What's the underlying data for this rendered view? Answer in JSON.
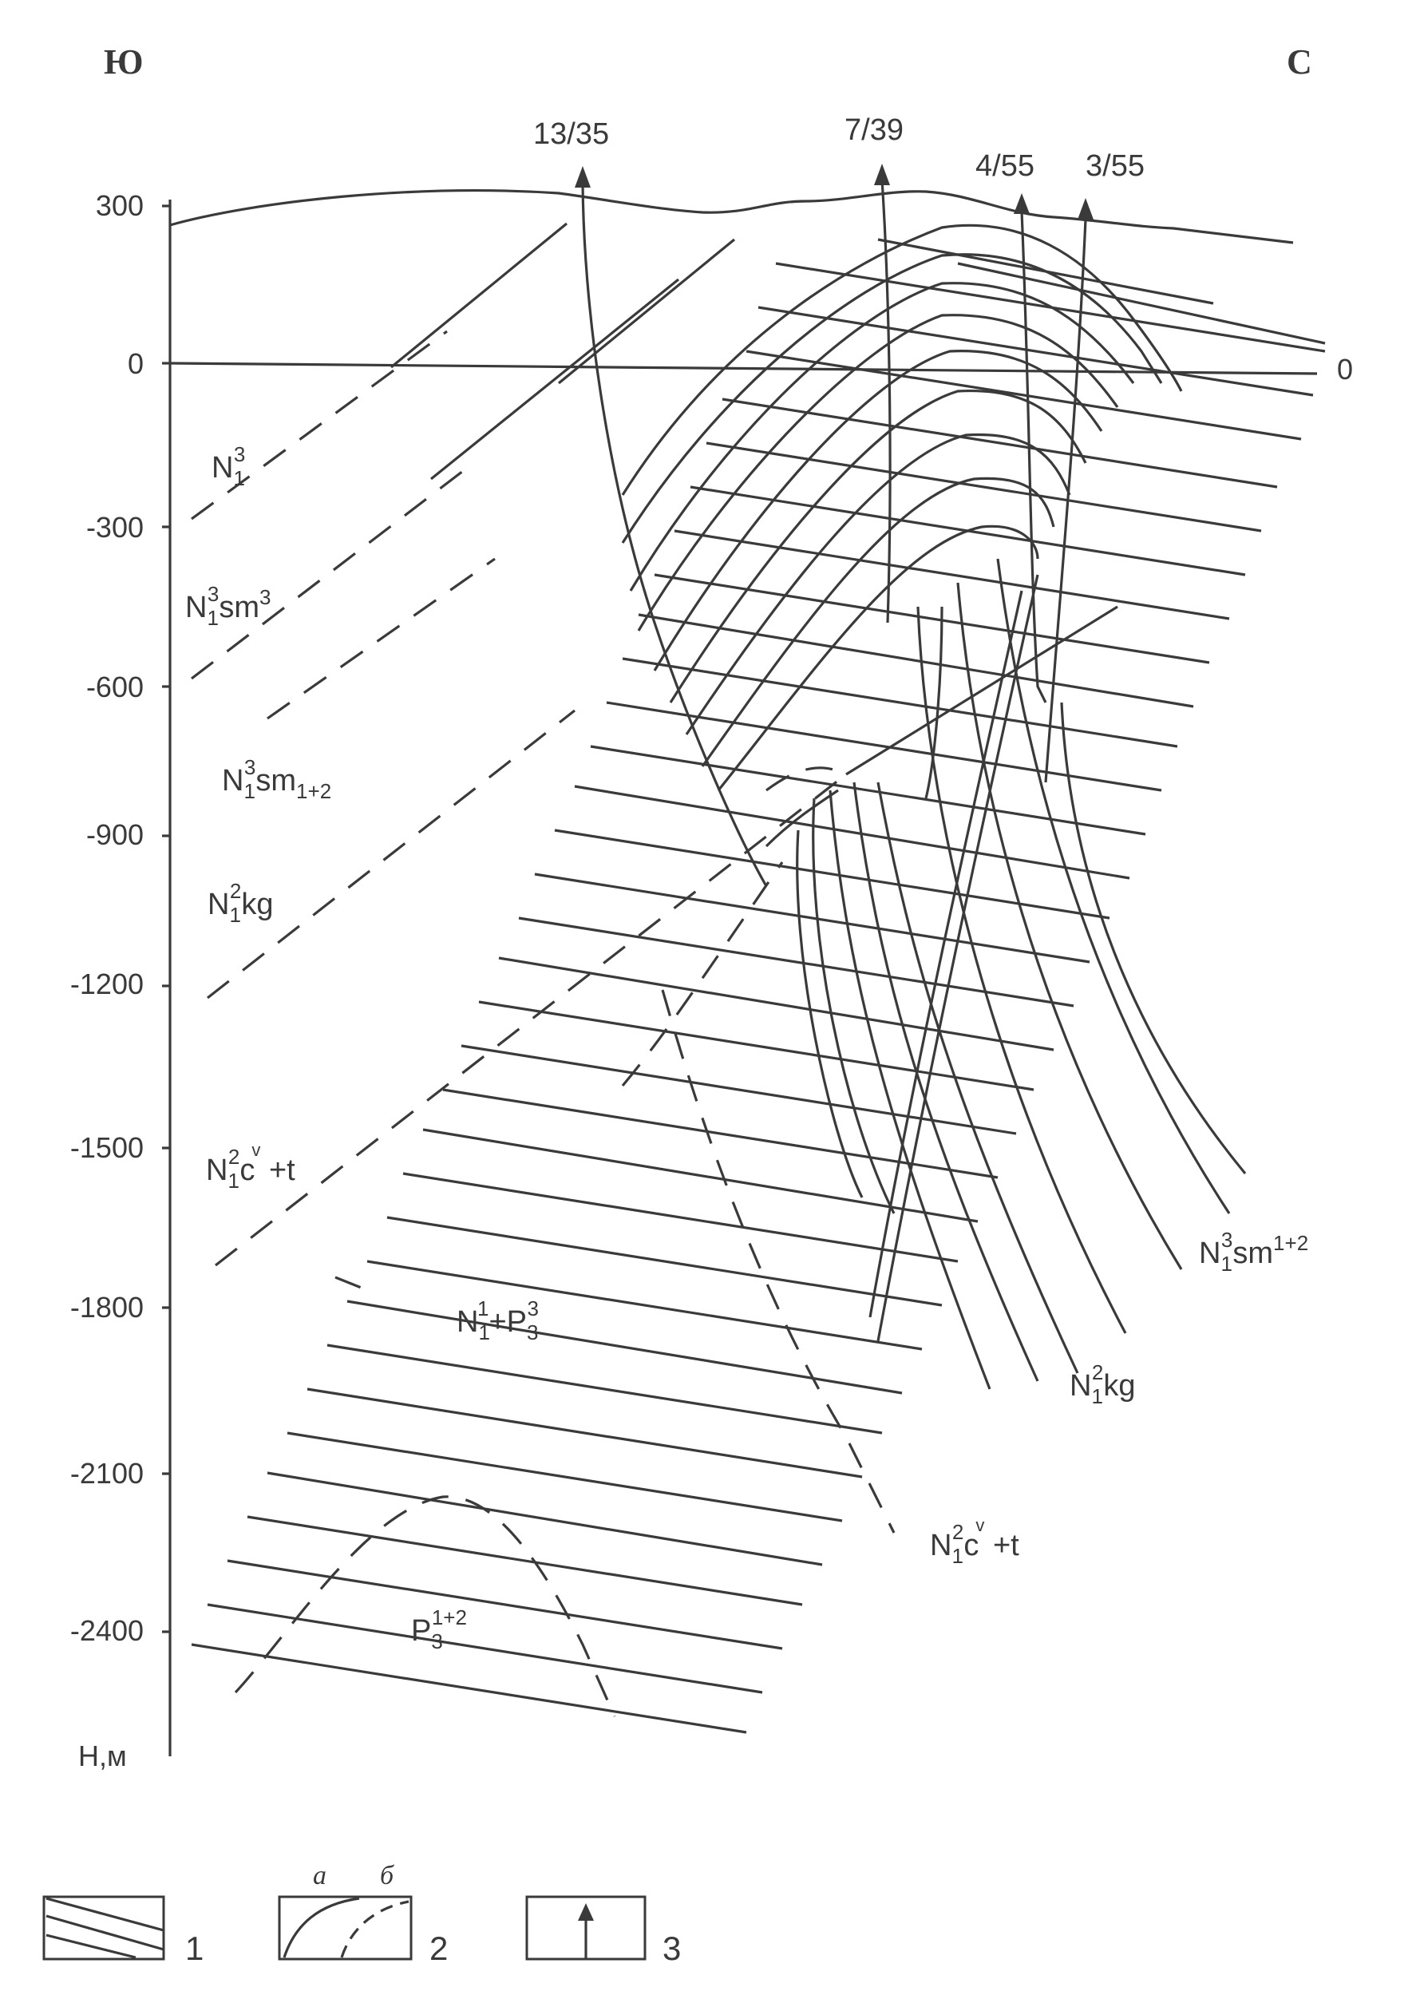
{
  "directions": {
    "left": "Ю",
    "right": "С"
  },
  "depth_axis": {
    "unit_label": "H,м",
    "ticks": [
      "300",
      "0",
      "-300",
      "-600",
      "-900",
      "-1200",
      "-1500",
      "-1800",
      "-2100",
      "-2400"
    ],
    "zero_right_label": "0"
  },
  "wells": [
    {
      "label": "13/35"
    },
    {
      "label": "7/39"
    },
    {
      "label": "4/55"
    },
    {
      "label": "3/55"
    }
  ],
  "formations_left": {
    "n1_3": {
      "main": "N",
      "sub": "1",
      "sup": "3",
      "suffix": ""
    },
    "n1_3_sm3": {
      "main": "N",
      "sub": "1",
      "sup": "3",
      "suffix": "sm",
      "suffix_sup": "3"
    },
    "n1_3_sm12": {
      "main": "N",
      "sub": "1",
      "sup": "3",
      "suffix": "sm",
      "suffix_sub": "1+2"
    },
    "n1_2_kg": {
      "main": "N",
      "sub": "1",
      "sup": "2",
      "suffix": "kg"
    },
    "n1_2_cv_t": {
      "main": "N",
      "sub": "1",
      "sup": "2",
      "suffix": "c",
      "accent": "v",
      "tail": " +t"
    },
    "n1_1_p3_3": {
      "main": "N",
      "sub": "1",
      "sup": "1",
      "mid": "+P",
      "mid_sub": "3",
      "mid_sup": "3"
    },
    "p3_12": {
      "main": "P",
      "sub": "3",
      "sup": "1+2"
    }
  },
  "formations_right": {
    "n1_3_sm12": {
      "main": "N",
      "sub": "1",
      "sup": "3",
      "suffix": "sm",
      "suffix_sup": "1+2"
    },
    "n1_2_kg": {
      "main": "N",
      "sub": "1",
      "sup": "2",
      "suffix": "kg"
    },
    "n1_2_cv_t": {
      "main": "N",
      "sub": "1",
      "sup": "2",
      "suffix": "c",
      "accent": "v",
      "tail": " +t"
    }
  },
  "legend": [
    {
      "number": "1",
      "meaning_icon": "hatched-lines-icon"
    },
    {
      "number": "2",
      "sub_a": "а",
      "sub_b": "б",
      "meaning_icon": "solid-and-dashed-curves-icon"
    },
    {
      "number": "3",
      "meaning_icon": "up-arrow-icon"
    }
  ]
}
